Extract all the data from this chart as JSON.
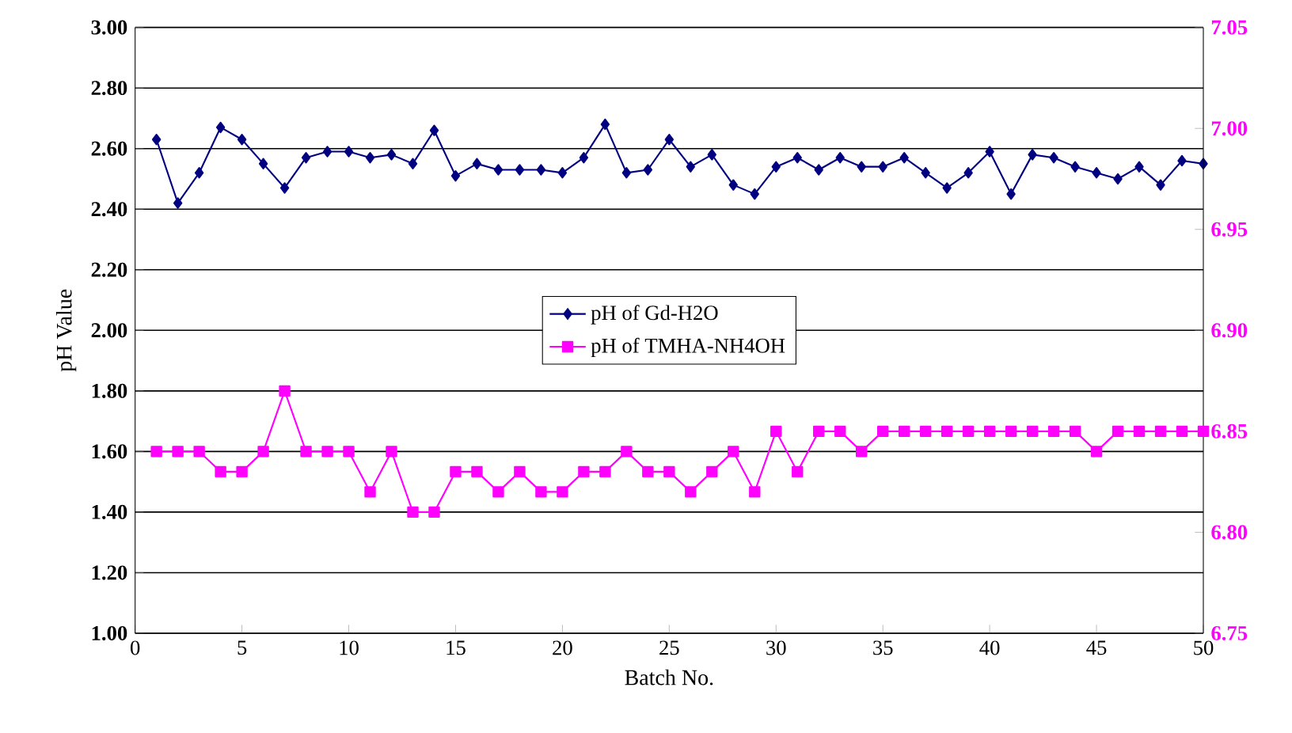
{
  "chart_data": {
    "type": "line",
    "xlabel": "Batch No.",
    "ylabel": "pH Value",
    "x": [
      1,
      2,
      3,
      4,
      5,
      6,
      7,
      8,
      9,
      10,
      11,
      12,
      13,
      14,
      15,
      16,
      17,
      18,
      19,
      20,
      21,
      22,
      23,
      24,
      25,
      26,
      27,
      28,
      29,
      30,
      31,
      32,
      33,
      34,
      35,
      36,
      37,
      38,
      39,
      40,
      41,
      42,
      43,
      44,
      45,
      46,
      47,
      48,
      49,
      50
    ],
    "series": [
      {
        "name": "pH of Gd-H2O",
        "color": "#000080",
        "marker": "diamond",
        "values": [
          2.63,
          2.42,
          2.52,
          2.67,
          2.63,
          2.55,
          2.47,
          2.57,
          2.59,
          2.59,
          2.57,
          2.58,
          2.55,
          2.66,
          2.51,
          2.55,
          2.53,
          2.53,
          2.53,
          2.52,
          2.57,
          2.68,
          2.52,
          2.53,
          2.63,
          2.54,
          2.58,
          2.48,
          2.45,
          2.54,
          2.57,
          2.53,
          2.57,
          2.54,
          2.54,
          2.57,
          2.52,
          2.47,
          2.52,
          2.59,
          2.45,
          2.58,
          2.57,
          2.54,
          2.52,
          2.5,
          2.54,
          2.48,
          2.56,
          2.55
        ]
      },
      {
        "name": "pH of TMHA-NH4OH",
        "color": "#ff00ff",
        "marker": "square",
        "axis": "y2",
        "values": [
          6.84,
          6.84,
          6.84,
          6.83,
          6.83,
          6.84,
          6.87,
          6.84,
          6.84,
          6.84,
          6.82,
          6.84,
          6.81,
          6.81,
          6.83,
          6.83,
          6.82,
          6.83,
          6.82,
          6.82,
          6.83,
          6.83,
          6.84,
          6.83,
          6.83,
          6.82,
          6.83,
          6.84,
          6.82,
          6.85,
          6.83,
          6.85,
          6.85,
          6.84,
          6.85,
          6.85,
          6.85,
          6.85,
          6.85,
          6.85,
          6.85,
          6.85,
          6.85,
          6.85,
          6.84,
          6.85,
          6.85,
          6.85,
          6.85,
          6.85
        ]
      }
    ],
    "xlim": [
      0,
      50
    ],
    "xticks": [
      0,
      5,
      10,
      15,
      20,
      25,
      30,
      35,
      40,
      45,
      50
    ],
    "ylim": [
      1,
      3
    ],
    "yticks": [
      {
        "value": 1,
        "label": "1.00"
      },
      {
        "value": 1.2,
        "label": "1.20"
      },
      {
        "value": 1.4,
        "label": "1.40"
      },
      {
        "value": 1.6,
        "label": "1.60"
      },
      {
        "value": 1.8,
        "label": "1.80"
      },
      {
        "value": 2,
        "label": "2.00"
      },
      {
        "value": 2.2,
        "label": "2.20"
      },
      {
        "value": 2.4,
        "label": "2.40"
      },
      {
        "value": 2.6,
        "label": "2.60"
      },
      {
        "value": 2.8,
        "label": "2.80"
      },
      {
        "value": 3,
        "label": "3.00"
      }
    ],
    "y2lim": [
      6.75,
      7.05
    ],
    "y2ticks": [
      6.75,
      {
        "value": 6.8,
        "label": "6.80"
      },
      6.85,
      {
        "value": 6.9,
        "label": "6.90"
      },
      6.95,
      {
        "value": 7,
        "label": "7.00"
      },
      7.05
    ],
    "grid": "y",
    "legend": "center",
    "line_style": "solid"
  }
}
